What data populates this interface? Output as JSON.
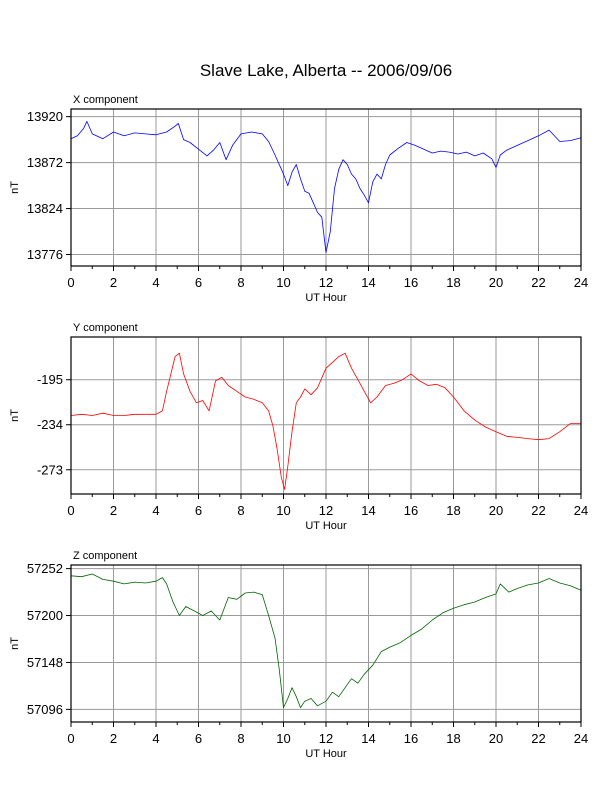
{
  "title": "Slave Lake, Alberta -- 2006/09/06",
  "chart_data": [
    {
      "type": "line",
      "panel_title": "X component",
      "xlabel": "UT Hour",
      "ylabel": "nT",
      "color": "#0000ff",
      "xlim": [
        0,
        24
      ],
      "ylim": [
        13764,
        13928
      ],
      "xticks": [
        0,
        2,
        4,
        6,
        8,
        10,
        12,
        14,
        16,
        18,
        20,
        22,
        24
      ],
      "yticks": [
        13920,
        13872,
        13824,
        13776
      ],
      "grid": true,
      "x": [
        0,
        0.3,
        0.6,
        0.75,
        1,
        1.5,
        2,
        2.5,
        3,
        3.5,
        4,
        4.5,
        4.9,
        5.05,
        5.3,
        5.6,
        6,
        6.4,
        6.7,
        7,
        7.3,
        7.6,
        8,
        8.5,
        9,
        9.3,
        9.6,
        9.9,
        10,
        10.2,
        10.4,
        10.6,
        10.8,
        11,
        11.2,
        11.4,
        11.6,
        11.8,
        12,
        12.2,
        12.4,
        12.6,
        12.8,
        13,
        13.2,
        13.4,
        13.6,
        13.8,
        14,
        14.2,
        14.4,
        14.6,
        14.8,
        15,
        15.4,
        15.8,
        16.2,
        16.6,
        17,
        17.4,
        17.8,
        18.2,
        18.6,
        19,
        19.4,
        19.8,
        20,
        20.2,
        20.5,
        21,
        21.5,
        22,
        22.5,
        23,
        23.5,
        24
      ],
      "y": [
        13897,
        13900,
        13908,
        13915,
        13902,
        13897,
        13904,
        13900,
        13903,
        13902,
        13901,
        13904,
        13910,
        13913,
        13896,
        13893,
        13886,
        13879,
        13885,
        13893,
        13875,
        13890,
        13902,
        13904,
        13902,
        13894,
        13880,
        13865,
        13860,
        13848,
        13862,
        13870,
        13855,
        13842,
        13840,
        13830,
        13820,
        13815,
        13778,
        13800,
        13845,
        13865,
        13875,
        13870,
        13860,
        13855,
        13845,
        13838,
        13830,
        13852,
        13860,
        13855,
        13870,
        13880,
        13887,
        13893,
        13890,
        13886,
        13882,
        13884,
        13883,
        13881,
        13883,
        13879,
        13882,
        13876,
        13867,
        13880,
        13885,
        13890,
        13895,
        13900,
        13906,
        13894,
        13895,
        13898
      ]
    },
    {
      "type": "line",
      "panel_title": "Y component",
      "xlabel": "UT Hour",
      "ylabel": "nT",
      "color": "#ff0000",
      "xlim": [
        0,
        24
      ],
      "ylim": [
        -294,
        -158
      ],
      "xticks": [
        0,
        2,
        4,
        6,
        8,
        10,
        12,
        14,
        16,
        18,
        20,
        22,
        24
      ],
      "yticks": [
        -195,
        -234,
        -273
      ],
      "grid": true,
      "x": [
        0,
        0.5,
        1,
        1.5,
        2,
        2.5,
        3,
        3.5,
        4,
        4.3,
        4.5,
        4.7,
        4.9,
        5.1,
        5.3,
        5.6,
        5.9,
        6.2,
        6.5,
        6.8,
        7.1,
        7.4,
        7.8,
        8.2,
        8.6,
        9,
        9.3,
        9.5,
        9.7,
        9.9,
        10.05,
        10.2,
        10.4,
        10.6,
        10.8,
        11,
        11.3,
        11.6,
        12,
        12.3,
        12.6,
        12.9,
        13.2,
        13.5,
        13.8,
        14.1,
        14.4,
        14.8,
        15.2,
        15.6,
        16,
        16.4,
        16.8,
        17.2,
        17.6,
        18,
        18.5,
        19,
        19.5,
        20,
        20.5,
        21,
        21.5,
        22,
        22.5,
        23,
        23.5,
        24
      ],
      "y": [
        -226,
        -225,
        -226,
        -224,
        -226,
        -226,
        -225,
        -225,
        -225,
        -222,
        -205,
        -190,
        -175,
        -172,
        -190,
        -205,
        -215,
        -213,
        -222,
        -196,
        -193,
        -200,
        -205,
        -210,
        -212,
        -215,
        -222,
        -235,
        -255,
        -280,
        -290,
        -270,
        -240,
        -215,
        -210,
        -203,
        -208,
        -202,
        -185,
        -180,
        -175,
        -172,
        -185,
        -195,
        -205,
        -215,
        -210,
        -200,
        -198,
        -195,
        -190,
        -196,
        -200,
        -199,
        -202,
        -210,
        -222,
        -230,
        -236,
        -240,
        -244,
        -245,
        -246,
        -247,
        -246,
        -240,
        -233,
        -233
      ]
    },
    {
      "type": "line",
      "panel_title": "Z component",
      "xlabel": "UT Hour",
      "ylabel": "nT",
      "color": "#006400",
      "xlim": [
        0,
        24
      ],
      "ylim": [
        57082,
        57256
      ],
      "xticks": [
        0,
        2,
        4,
        6,
        8,
        10,
        12,
        14,
        16,
        18,
        20,
        22,
        24
      ],
      "yticks": [
        57252,
        57200,
        57148,
        57096
      ],
      "grid": true,
      "x": [
        0,
        0.5,
        1,
        1.5,
        2,
        2.5,
        3,
        3.5,
        4,
        4.3,
        4.5,
        4.8,
        5.1,
        5.4,
        5.8,
        6.2,
        6.6,
        7,
        7.4,
        7.8,
        8.2,
        8.6,
        9,
        9.3,
        9.6,
        9.8,
        10,
        10.2,
        10.4,
        10.6,
        10.8,
        11,
        11.3,
        11.6,
        12,
        12.3,
        12.6,
        12.9,
        13.2,
        13.5,
        13.8,
        14.2,
        14.6,
        15,
        15.5,
        16,
        16.5,
        17,
        17.5,
        18,
        18.5,
        19,
        19.5,
        20,
        20.2,
        20.6,
        21,
        21.5,
        22,
        22.5,
        23,
        23.5,
        24
      ],
      "y": [
        57244,
        57243,
        57246,
        57240,
        57238,
        57235,
        57237,
        57236,
        57238,
        57242,
        57235,
        57215,
        57200,
        57210,
        57205,
        57200,
        57205,
        57195,
        57220,
        57218,
        57225,
        57226,
        57223,
        57200,
        57175,
        57140,
        57098,
        57108,
        57120,
        57110,
        57098,
        57105,
        57108,
        57100,
        57105,
        57115,
        57110,
        57120,
        57130,
        57125,
        57135,
        57145,
        57160,
        57165,
        57170,
        57178,
        57185,
        57195,
        57203,
        57208,
        57212,
        57215,
        57220,
        57224,
        57235,
        57226,
        57230,
        57234,
        57236,
        57241,
        57236,
        57233,
        57228
      ]
    }
  ]
}
